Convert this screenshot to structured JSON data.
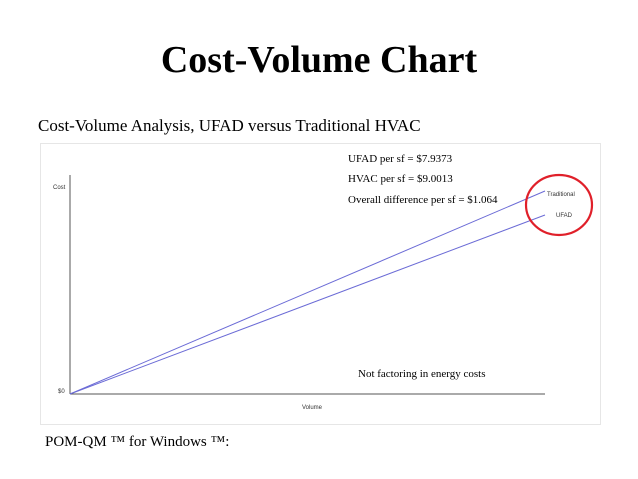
{
  "slide": {
    "title": "Cost-Volume Chart",
    "subtitle": "Cost-Volume Analysis, UFAD versus Traditional HVAC",
    "footer": "POM-QM ™ for Windows ™:"
  },
  "notes": {
    "ufad_per_sf": "UFAD per sf = $7.9373",
    "hvac_per_sf": "HVAC per sf = $9.0013",
    "overall_difference": "Overall difference per sf = $1.064",
    "energy_note": "Not factoring in energy costs"
  },
  "colors": {
    "line": "#6b6bd6",
    "axis": "#555555",
    "highlight_circle": "#e0202a"
  },
  "chart_data": {
    "type": "line",
    "xlabel": "Volume",
    "ylabel": "Cost",
    "y_tick_labels": [
      "$0"
    ],
    "x": [
      0,
      1
    ],
    "series": [
      {
        "name": "Traditional",
        "values": [
          0,
          9.0013
        ]
      },
      {
        "name": "UFAD",
        "values": [
          0,
          7.9373
        ]
      }
    ],
    "annotations": [
      "Traditional",
      "UFAD"
    ],
    "grid": false
  }
}
